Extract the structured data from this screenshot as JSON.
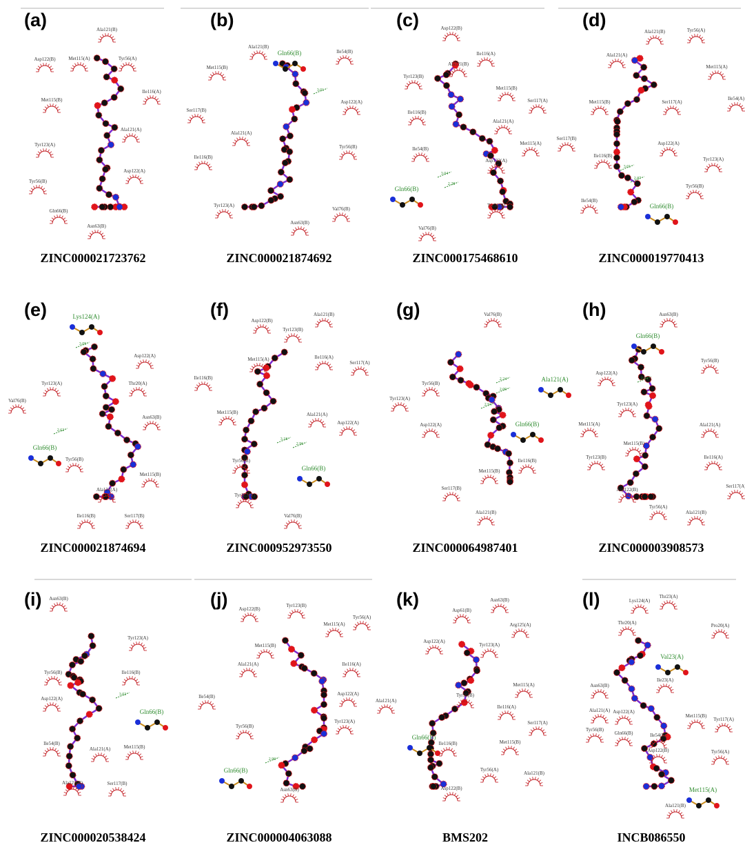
{
  "panels": [
    {
      "label": "(a)",
      "caption": "ZINC000021723762",
      "residues": [
        "Ala121(B)",
        "Asp122(B)",
        "Met115(A)",
        "Tyr56(A)",
        "Ile116(A)",
        "Met115(B)",
        "Ala121(A)",
        "Tyr123(A)",
        "Asp122(A)",
        "Tyr56(B)",
        "Gln66(B)",
        "Asn63(B)"
      ],
      "hbond_residues": [],
      "distances": []
    },
    {
      "label": "(b)",
      "caption": "ZINC000021874692",
      "residues": [
        "Ala121(B)",
        "Ile54(B)",
        "Met115(B)",
        "Asp122(A)",
        "Ser117(B)",
        "Ala121(A)",
        "Tyr56(B)",
        "Ile116(B)",
        "Tyr123(A)",
        "Val76(B)",
        "Asn63(B)"
      ],
      "hbond_residues": [
        "Gln66(B)"
      ],
      "distances": [
        "3.01"
      ]
    },
    {
      "label": "(c)",
      "caption": "ZINC000175468610",
      "residues": [
        "Asp122(B)",
        "Ile116(A)",
        "Ala121(B)",
        "Tyr123(B)",
        "Met115(B)",
        "Ser117(A)",
        "Ile116(B)",
        "Ala121(A)",
        "Met115(A)",
        "Ile54(B)",
        "Asp122(A)",
        "Tyr56(B)",
        "Val76(B)"
      ],
      "hbond_residues": [
        "Gln66(B)"
      ],
      "distances": [
        "3.04",
        "2.28"
      ]
    },
    {
      "label": "(d)",
      "caption": "ZINC000019770413",
      "residues": [
        "Ala121(B)",
        "Tyr56(A)",
        "Ala121(A)",
        "Met115(A)",
        "Met115(B)",
        "Ser117(A)",
        "Ile54(A)",
        "Ser117(B)",
        "Asp122(A)",
        "Ile116(B)",
        "Tyr123(A)",
        "Tyr56(B)",
        "Ile54(B)"
      ],
      "hbond_residues": [
        "Gln66(B)"
      ],
      "distances": [
        "3.01",
        "2.87"
      ]
    },
    {
      "label": "(e)",
      "caption": "ZINC000021874694",
      "residues": [
        "Asp122(A)",
        "Tyr123(A)",
        "Thr20(A)",
        "Val76(B)",
        "Asn63(B)",
        "Tyr56(B)",
        "Met115(B)",
        "Ala121(A)",
        "Ile116(B)",
        "Ser117(B)"
      ],
      "hbond_residues": [
        "Lys124(A)",
        "Gln66(B)"
      ],
      "distances": [
        "3.09",
        "2.62"
      ]
    },
    {
      "label": "(f)",
      "caption": "ZINC000952973550",
      "residues": [
        "Asp122(B)",
        "Ala121(B)",
        "Tyr123(B)",
        "Met115(A)",
        "Ile116(A)",
        "Ser117(A)",
        "Ile116(B)",
        "Met115(B)",
        "Ala121(A)",
        "Asp122(A)",
        "Tyr56(B)",
        "Tyr123(A)",
        "Val76(B)"
      ],
      "hbond_residues": [
        "Gln66(B)"
      ],
      "distances": [
        "3.18",
        "2.96"
      ]
    },
    {
      "label": "(g)",
      "caption": "ZINC000064987401",
      "residues": [
        "Val76(B)",
        "Tyr56(B)",
        "Tyr123(A)",
        "Asp122(A)",
        "Ile116(B)",
        "Met115(B)",
        "Ser117(B)",
        "Ala121(B)"
      ],
      "hbond_residues": [
        "Ala121(A)",
        "Gln66(B)"
      ],
      "distances": [
        "2.24",
        "2.00",
        "2.94"
      ]
    },
    {
      "label": "(h)",
      "caption": "ZINC000003908573",
      "residues": [
        "Asn63(B)",
        "Tyr56(B)",
        "Asp122(A)",
        "Tyr123(A)",
        "Met115(A)",
        "Ala121(A)",
        "Met115(B)",
        "Tyr123(B)",
        "Ile116(A)",
        "Asp122(B)",
        "Ser117(A)",
        "Tyr56(A)",
        "Ala121(B)"
      ],
      "hbond_residues": [
        "Gln66(B)"
      ],
      "distances": [
        "2.84"
      ]
    },
    {
      "label": "(i)",
      "caption": "ZINC000020538424",
      "residues": [
        "Asn63(B)",
        "Tyr123(A)",
        "Tyr56(B)",
        "Ile116(B)",
        "Asp122(A)",
        "Ile54(B)",
        "Ala121(A)",
        "Met115(B)",
        "Ala121(B)",
        "Ser117(B)"
      ],
      "hbond_residues": [
        "Gln66(B)"
      ],
      "distances": [
        "3.02"
      ]
    },
    {
      "label": "(j)",
      "caption": "ZINC000004063088",
      "residues": [
        "Asp122(B)",
        "Tyr123(B)",
        "Tyr56(A)",
        "Met115(A)",
        "Met115(B)",
        "Ile116(A)",
        "Ala121(A)",
        "Ile54(B)",
        "Asp122(A)",
        "Tyr56(B)",
        "Tyr123(A)",
        "Asn63(B)"
      ],
      "hbond_residues": [
        "Gln66(B)"
      ],
      "distances": [
        "2.90"
      ]
    },
    {
      "label": "(k)",
      "caption": "BMS202",
      "residues": [
        "Asn63(B)",
        "Asp61(B)",
        "Arg125(A)",
        "Asp122(A)",
        "Tyr123(A)",
        "Met115(A)",
        "Tyr56(B)",
        "Ala121(A)",
        "Ile116(A)",
        "Ser117(A)",
        "Met115(B)",
        "Ile116(B)",
        "Tyr56(A)",
        "Ala121(B)",
        "Asp122(B)"
      ],
      "hbond_residues": [
        "Gln66(B)"
      ],
      "distances": []
    },
    {
      "label": "(l)",
      "caption": "INCB086550",
      "residues": [
        "Thr23(A)",
        "Lys124(A)",
        "Thr20(A)",
        "Pro20(A)",
        "Asn63(B)",
        "Ile23(A)",
        "Ala121(A)",
        "Asp122(A)",
        "Met115(B)",
        "Tyr56(B)",
        "Gln66(B)",
        "Ile54(B)",
        "Tyr117(A)",
        "Tyr56(A)",
        "Asp122(B)",
        "Ala121(B)"
      ],
      "hbond_residues": [
        "Val23(A)",
        "Met115(A)"
      ],
      "distances": []
    }
  ]
}
